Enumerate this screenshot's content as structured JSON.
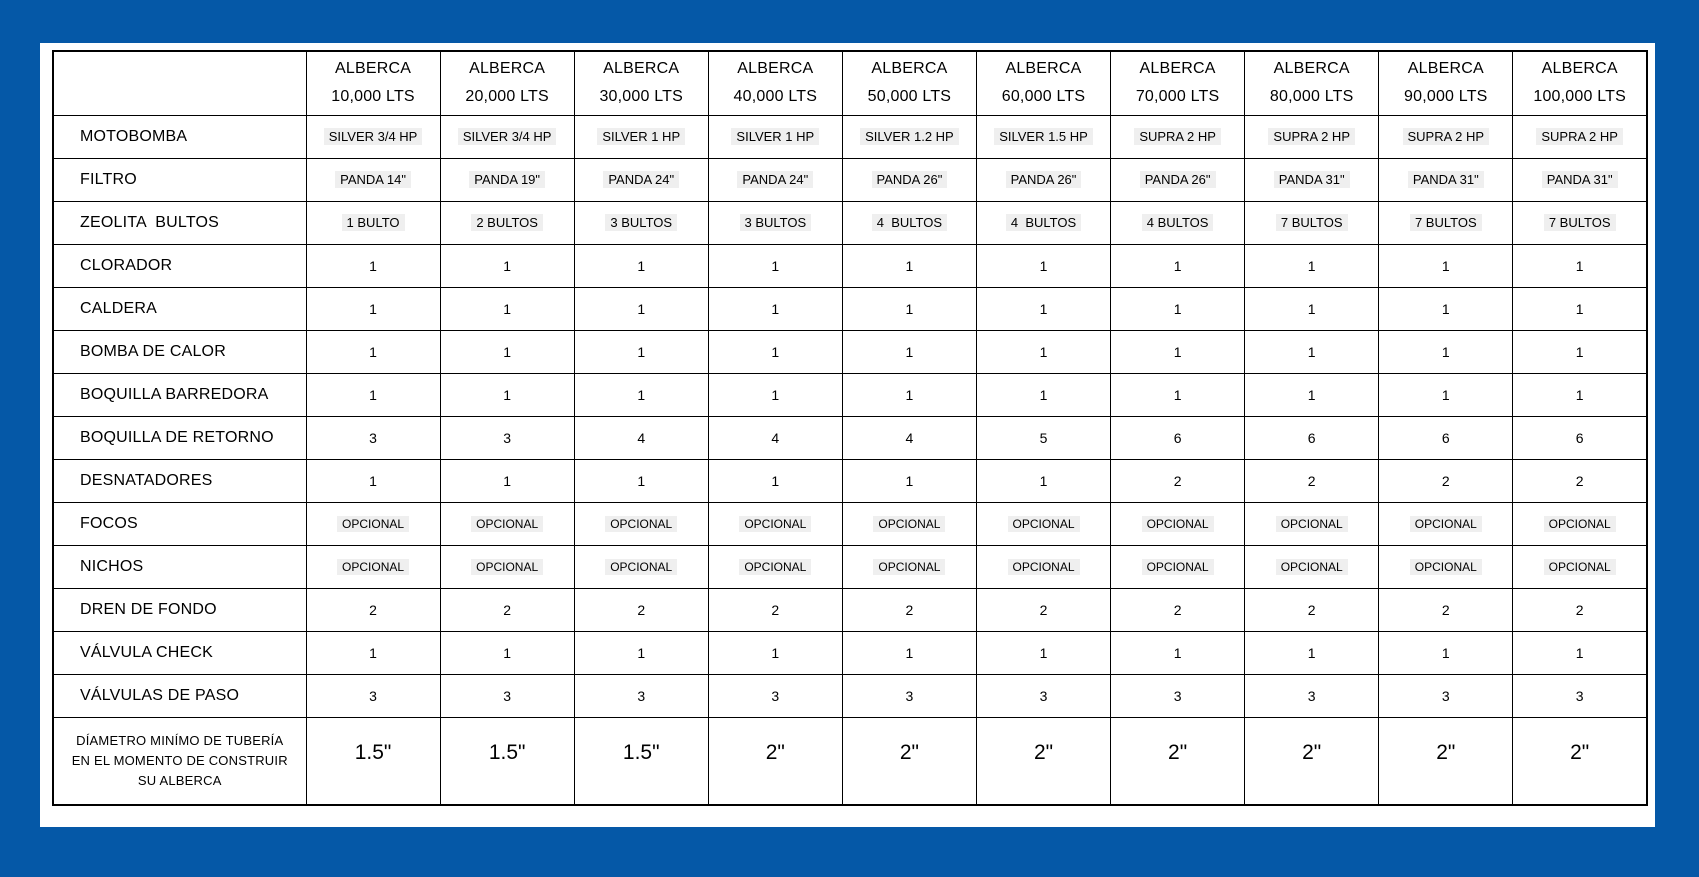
{
  "colors": {
    "frame_blue": "#0558A7",
    "panel_white": "#FFFFFF",
    "grid_black": "#000000",
    "value_highlight": "#EFEFEF"
  },
  "table": {
    "corner_label": "",
    "columns": [
      "ALBERCA\n10,000 LTS",
      "ALBERCA\n20,000 LTS",
      "ALBERCA\n30,000 LTS",
      "ALBERCA\n40,000 LTS",
      "ALBERCA\n50,000 LTS",
      "ALBERCA\n60,000 LTS",
      "ALBERCA\n70,000 LTS",
      "ALBERCA\n80,000 LTS",
      "ALBERCA\n90,000 LTS",
      "ALBERCA\n100,000 LTS"
    ],
    "rows": [
      {
        "label": "MOTOBOMBA",
        "style": "small",
        "values": [
          "SILVER 3/4 HP",
          "SILVER 3/4 HP",
          "SILVER 1 HP",
          "SILVER 1 HP",
          "SILVER 1.2 HP",
          "SILVER 1.5 HP",
          "SUPRA 2 HP",
          "SUPRA 2 HP",
          "SUPRA 2 HP",
          "SUPRA 2 HP"
        ]
      },
      {
        "label": "FILTRO",
        "style": "small",
        "values": [
          "PANDA 14\"",
          "PANDA 19\"",
          "PANDA 24\"",
          "PANDA 24\"",
          "PANDA 26\"",
          "PANDA 26\"",
          "PANDA 26\"",
          "PANDA 31\"",
          "PANDA 31\"",
          "PANDA 31\""
        ]
      },
      {
        "label": "ZEOLITA  BULTOS",
        "style": "small",
        "values": [
          "1 BULTO",
          "2 BULTOS",
          "3 BULTOS",
          "3 BULTOS",
          "4  BULTOS",
          "4  BULTOS",
          "4 BULTOS",
          "7 BULTOS",
          "7 BULTOS",
          "7 BULTOS"
        ]
      },
      {
        "label": "CLORADOR",
        "style": "num",
        "values": [
          "1",
          "1",
          "1",
          "1",
          "1",
          "1",
          "1",
          "1",
          "1",
          "1"
        ]
      },
      {
        "label": "CALDERA",
        "style": "num",
        "values": [
          "1",
          "1",
          "1",
          "1",
          "1",
          "1",
          "1",
          "1",
          "1",
          "1"
        ]
      },
      {
        "label": "BOMBA DE CALOR",
        "style": "num",
        "values": [
          "1",
          "1",
          "1",
          "1",
          "1",
          "1",
          "1",
          "1",
          "1",
          "1"
        ]
      },
      {
        "label": "BOQUILLA BARREDORA",
        "style": "num",
        "values": [
          "1",
          "1",
          "1",
          "1",
          "1",
          "1",
          "1",
          "1",
          "1",
          "1"
        ]
      },
      {
        "label": "BOQUILLA DE RETORNO",
        "style": "num",
        "values": [
          "3",
          "3",
          "4",
          "4",
          "4",
          "5",
          "6",
          "6",
          "6",
          "6"
        ]
      },
      {
        "label": "DESNATADORES",
        "style": "num",
        "values": [
          "1",
          "1",
          "1",
          "1",
          "1",
          "1",
          "2",
          "2",
          "2",
          "2"
        ]
      },
      {
        "label": "FOCOS",
        "style": "opcional",
        "values": [
          "OPCIONAL",
          "OPCIONAL",
          "OPCIONAL",
          "OPCIONAL",
          "OPCIONAL",
          "OPCIONAL",
          "OPCIONAL",
          "OPCIONAL",
          "OPCIONAL",
          "OPCIONAL"
        ]
      },
      {
        "label": "NICHOS",
        "style": "opcional",
        "values": [
          "OPCIONAL",
          "OPCIONAL",
          "OPCIONAL",
          "OPCIONAL",
          "OPCIONAL",
          "OPCIONAL",
          "OPCIONAL",
          "OPCIONAL",
          "OPCIONAL",
          "OPCIONAL"
        ]
      },
      {
        "label": "DREN DE FONDO",
        "style": "num",
        "values": [
          "2",
          "2",
          "2",
          "2",
          "2",
          "2",
          "2",
          "2",
          "2",
          "2"
        ]
      },
      {
        "label": "VÁLVULA CHECK",
        "style": "num",
        "values": [
          "1",
          "1",
          "1",
          "1",
          "1",
          "1",
          "1",
          "1",
          "1",
          "1"
        ]
      },
      {
        "label": "VÁLVULAS DE PASO",
        "style": "num",
        "values": [
          "3",
          "3",
          "3",
          "3",
          "3",
          "3",
          "3",
          "3",
          "3",
          "3"
        ]
      },
      {
        "label": "DÍAMETRO MINÍMO DE TUBERÍA\nEN EL MOMENTO DE CONSTRUIR\nSU ALBERCA",
        "style": "big",
        "values": [
          "1.5\"",
          "1.5\"",
          "1.5\"",
          "2\"",
          "2\"",
          "2\"",
          "2\"",
          "2\"",
          "2\"",
          "2\""
        ]
      }
    ]
  }
}
